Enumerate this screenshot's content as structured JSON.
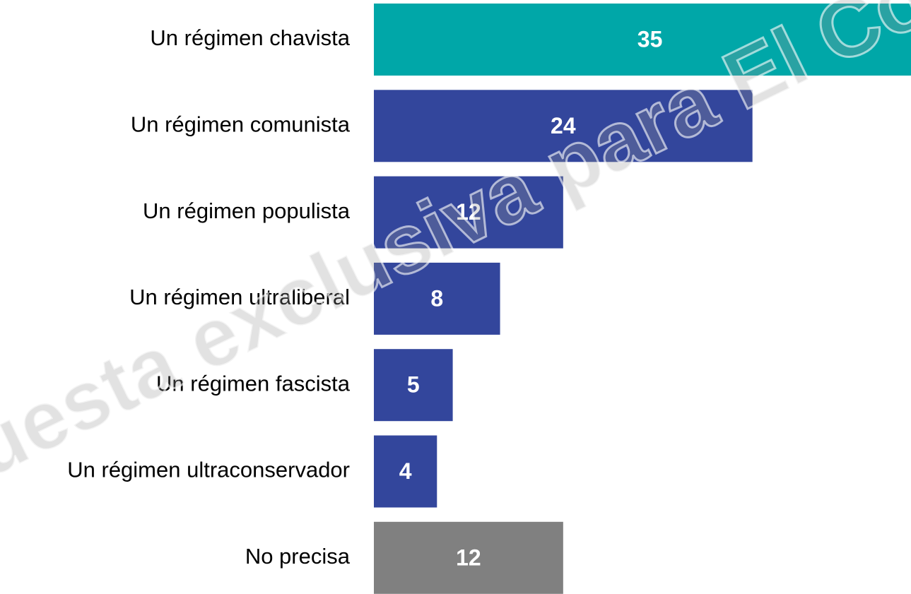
{
  "chart_data": {
    "type": "barh",
    "categories": [
      "Un régimen chavista",
      "Un régimen comunista",
      "Un régimen populista",
      "Un régimen ultraliberal",
      "Un régimen fascista",
      "Un régimen ultraconservador",
      "No precisa"
    ],
    "values": [
      35,
      24,
      12,
      8,
      5,
      4,
      12
    ],
    "colors": [
      "#00a7a8",
      "#33469c",
      "#33469c",
      "#33469c",
      "#33469c",
      "#33469c",
      "#808080"
    ],
    "watermark": "uesta exclusiva para El Com"
  }
}
